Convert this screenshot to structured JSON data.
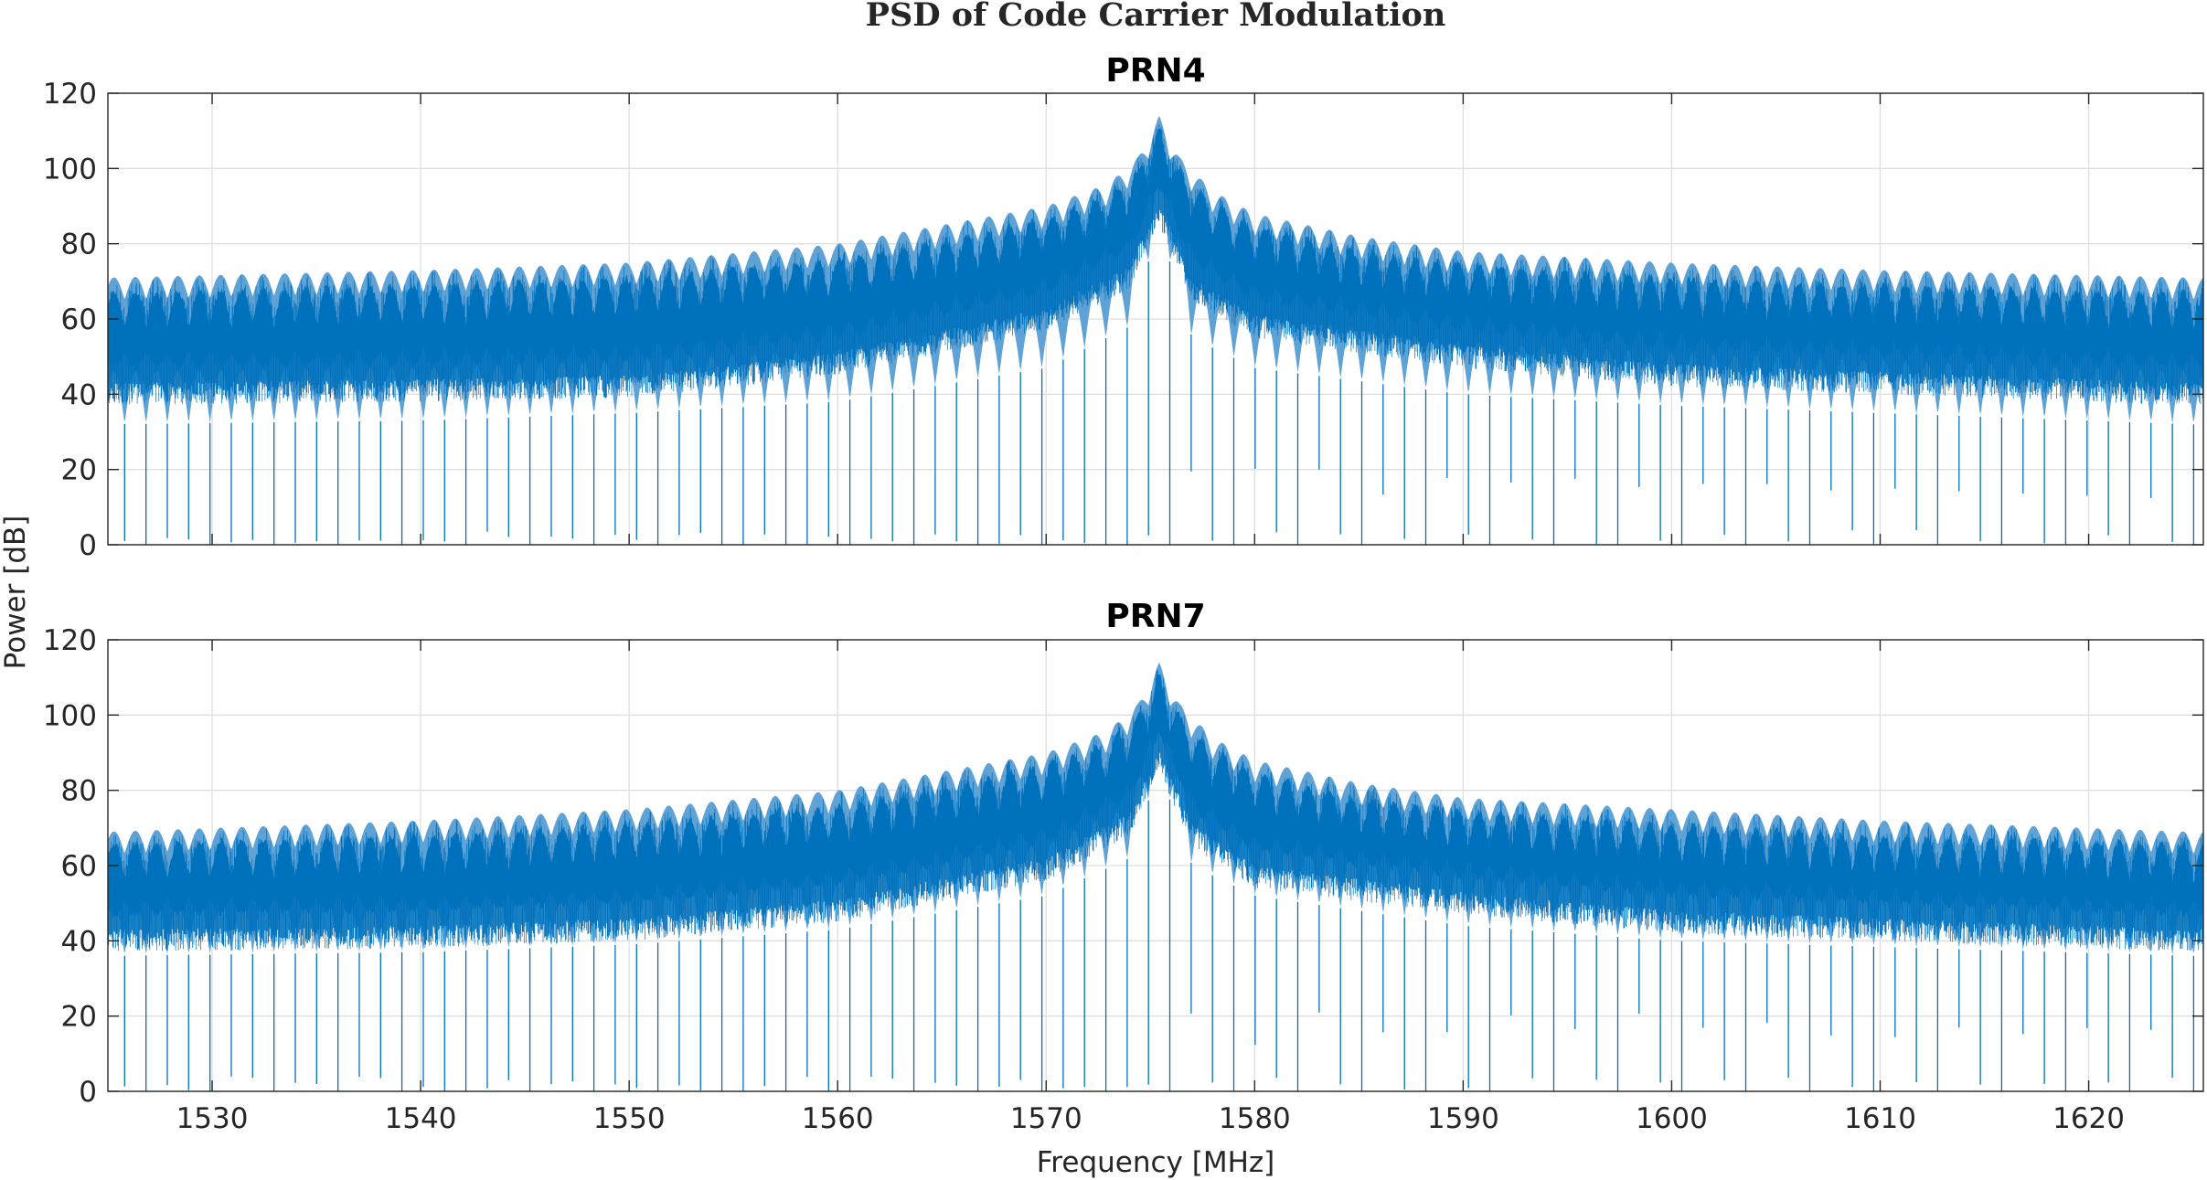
{
  "figure": {
    "title": "PSD of Code Carrier Modulation",
    "xlabel": "Frequency [MHz]",
    "ylabel": "Power [dB]"
  },
  "colors": {
    "series": "#0072BD",
    "series_light": "#5FA2D6",
    "grid": "#DFDFDF",
    "axes": "#262626"
  },
  "chart_data": [
    {
      "type": "line",
      "title": "PRN4",
      "xlabel": "",
      "ylabel": "Power [dB]",
      "xlim": [
        1525,
        1625.5
      ],
      "ylim": [
        0,
        120
      ],
      "x_ticks": [
        1530,
        1540,
        1550,
        1560,
        1570,
        1580,
        1590,
        1600,
        1610,
        1620
      ],
      "y_ticks": [
        0,
        20,
        40,
        60,
        80,
        100,
        120
      ],
      "y_tick_labels": [
        "0",
        "20",
        "40",
        "60",
        "80",
        "100",
        "120"
      ],
      "grid": true,
      "center_frequency": 1575.42,
      "lobe_spacing": 1.023,
      "peak_max": 114,
      "envelope_max": [
        [
          1525,
          71
        ],
        [
          1540,
          73
        ],
        [
          1550,
          75
        ],
        [
          1560,
          80
        ],
        [
          1565,
          85
        ],
        [
          1570,
          90
        ],
        [
          1573,
          96
        ],
        [
          1574.4,
          103
        ],
        [
          1575.42,
          114
        ],
        [
          1576.4,
          103
        ],
        [
          1578,
          94
        ],
        [
          1580,
          88
        ],
        [
          1585,
          82
        ],
        [
          1590,
          78
        ],
        [
          1600,
          75
        ],
        [
          1610,
          73
        ],
        [
          1625,
          71
        ]
      ],
      "envelope_fill_top": [
        [
          1525,
          67
        ],
        [
          1540,
          69
        ],
        [
          1550,
          71
        ],
        [
          1560,
          76
        ],
        [
          1565,
          81
        ],
        [
          1570,
          87
        ],
        [
          1573,
          93
        ],
        [
          1574.4,
          100
        ],
        [
          1575.42,
          111
        ],
        [
          1576.4,
          100
        ],
        [
          1578,
          91
        ],
        [
          1580,
          85
        ],
        [
          1585,
          78
        ],
        [
          1590,
          75
        ],
        [
          1600,
          71
        ],
        [
          1610,
          69
        ],
        [
          1625,
          67
        ]
      ],
      "envelope_fill_bottom": [
        [
          1525,
          47
        ],
        [
          1540,
          48
        ],
        [
          1550,
          49
        ],
        [
          1560,
          55
        ],
        [
          1570,
          67
        ],
        [
          1574,
          78
        ],
        [
          1575.42,
          95
        ],
        [
          1577,
          75
        ],
        [
          1580,
          65
        ],
        [
          1590,
          57
        ],
        [
          1600,
          52
        ],
        [
          1625,
          47
        ]
      ],
      "envelope_min": [
        [
          1525,
          32
        ],
        [
          1540,
          33
        ],
        [
          1550,
          35
        ],
        [
          1560,
          38
        ],
        [
          1570,
          47
        ],
        [
          1574,
          58
        ],
        [
          1575.42,
          85
        ],
        [
          1577,
          55
        ],
        [
          1580,
          47
        ],
        [
          1590,
          40
        ],
        [
          1600,
          37
        ],
        [
          1625,
          32
        ]
      ]
    },
    {
      "type": "line",
      "title": "PRN7",
      "xlabel": "Frequency [MHz]",
      "ylabel": "Power [dB]",
      "xlim": [
        1525,
        1625.5
      ],
      "ylim": [
        0,
        120
      ],
      "x_ticks": [
        1530,
        1540,
        1550,
        1560,
        1570,
        1580,
        1590,
        1600,
        1610,
        1620
      ],
      "x_tick_labels": [
        "1530",
        "1540",
        "1550",
        "1560",
        "1570",
        "1580",
        "1590",
        "1600",
        "1610",
        "1620"
      ],
      "y_ticks": [
        0,
        20,
        40,
        60,
        80,
        100,
        120
      ],
      "y_tick_labels": [
        "0",
        "20",
        "40",
        "60",
        "80",
        "100",
        "120"
      ],
      "grid": true,
      "center_frequency": 1575.42,
      "lobe_spacing": 1.023,
      "peak_max": 114,
      "envelope_max": [
        [
          1525,
          69
        ],
        [
          1540,
          72
        ],
        [
          1550,
          75
        ],
        [
          1560,
          80
        ],
        [
          1565,
          85
        ],
        [
          1570,
          90
        ],
        [
          1573,
          96
        ],
        [
          1574.4,
          103
        ],
        [
          1575.42,
          114
        ],
        [
          1576.4,
          103
        ],
        [
          1578,
          94
        ],
        [
          1580,
          88
        ],
        [
          1585,
          82
        ],
        [
          1590,
          78
        ],
        [
          1600,
          75
        ],
        [
          1610,
          72
        ],
        [
          1625,
          69
        ]
      ],
      "envelope_fill_top": [
        [
          1525,
          66
        ],
        [
          1540,
          68
        ],
        [
          1550,
          71
        ],
        [
          1560,
          76
        ],
        [
          1565,
          81
        ],
        [
          1570,
          87
        ],
        [
          1573,
          93
        ],
        [
          1574.4,
          100
        ],
        [
          1575.42,
          111
        ],
        [
          1576.4,
          100
        ],
        [
          1578,
          91
        ],
        [
          1580,
          85
        ],
        [
          1585,
          78
        ],
        [
          1590,
          75
        ],
        [
          1600,
          71
        ],
        [
          1610,
          68
        ],
        [
          1625,
          66
        ]
      ],
      "envelope_fill_bottom": [
        [
          1525,
          47
        ],
        [
          1540,
          48
        ],
        [
          1550,
          50
        ],
        [
          1560,
          55
        ],
        [
          1570,
          66
        ],
        [
          1574,
          78
        ],
        [
          1575.42,
          95
        ],
        [
          1577,
          75
        ],
        [
          1580,
          64
        ],
        [
          1590,
          57
        ],
        [
          1600,
          52
        ],
        [
          1625,
          47
        ]
      ],
      "envelope_min": [
        [
          1525,
          36
        ],
        [
          1540,
          37
        ],
        [
          1550,
          39
        ],
        [
          1560,
          43
        ],
        [
          1570,
          52
        ],
        [
          1574,
          62
        ],
        [
          1575.42,
          86
        ],
        [
          1577,
          60
        ],
        [
          1580,
          52
        ],
        [
          1590,
          44
        ],
        [
          1600,
          40
        ],
        [
          1625,
          36
        ]
      ]
    }
  ]
}
